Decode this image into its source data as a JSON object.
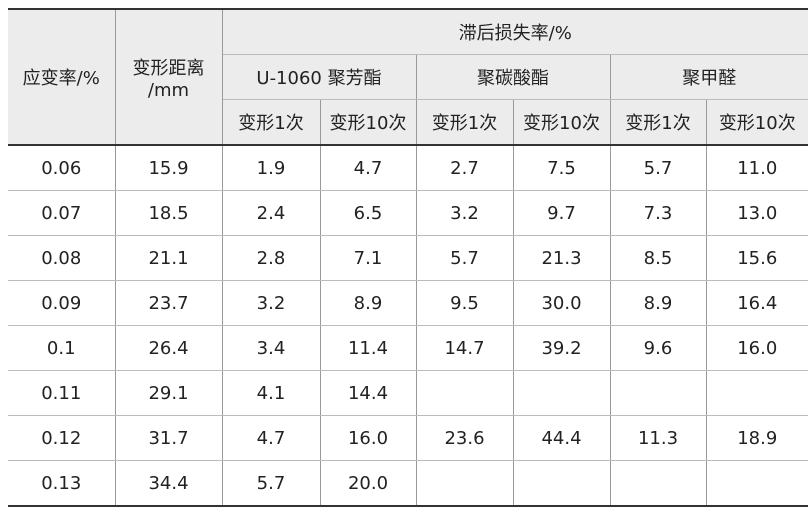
{
  "header": {
    "strain_rate": "应变率/%",
    "distance": "变形距离\n/mm",
    "group": "滞后损失率/%",
    "materials": [
      "U-1060 聚芳酯",
      "聚碳酸酯",
      "聚甲醛"
    ],
    "sub": [
      "变形1次",
      "变形10次",
      "变形1次",
      "变形10次",
      "变形1次",
      "变形10次"
    ]
  },
  "table": {
    "rows": [
      [
        "0.06",
        "15.9",
        "1.9",
        "4.7",
        "2.7",
        "7.5",
        "5.7",
        "11.0"
      ],
      [
        "0.07",
        "18.5",
        "2.4",
        "6.5",
        "3.2",
        "9.7",
        "7.3",
        "13.0"
      ],
      [
        "0.08",
        "21.1",
        "2.8",
        "7.1",
        "5.7",
        "21.3",
        "8.5",
        "15.6"
      ],
      [
        "0.09",
        "23.7",
        "3.2",
        "8.9",
        "9.5",
        "30.0",
        "8.9",
        "16.4"
      ],
      [
        "0.1",
        "26.4",
        "3.4",
        "11.4",
        "14.7",
        "39.2",
        "9.6",
        "16.0"
      ],
      [
        "0.11",
        "29.1",
        "4.1",
        "14.4",
        null,
        null,
        null,
        null
      ],
      [
        "0.12",
        "31.7",
        "4.7",
        "16.0",
        "23.6",
        "44.4",
        "11.3",
        "18.9"
      ],
      [
        "0.13",
        "34.4",
        "5.7",
        "20.0",
        null,
        null,
        null,
        null
      ]
    ]
  }
}
